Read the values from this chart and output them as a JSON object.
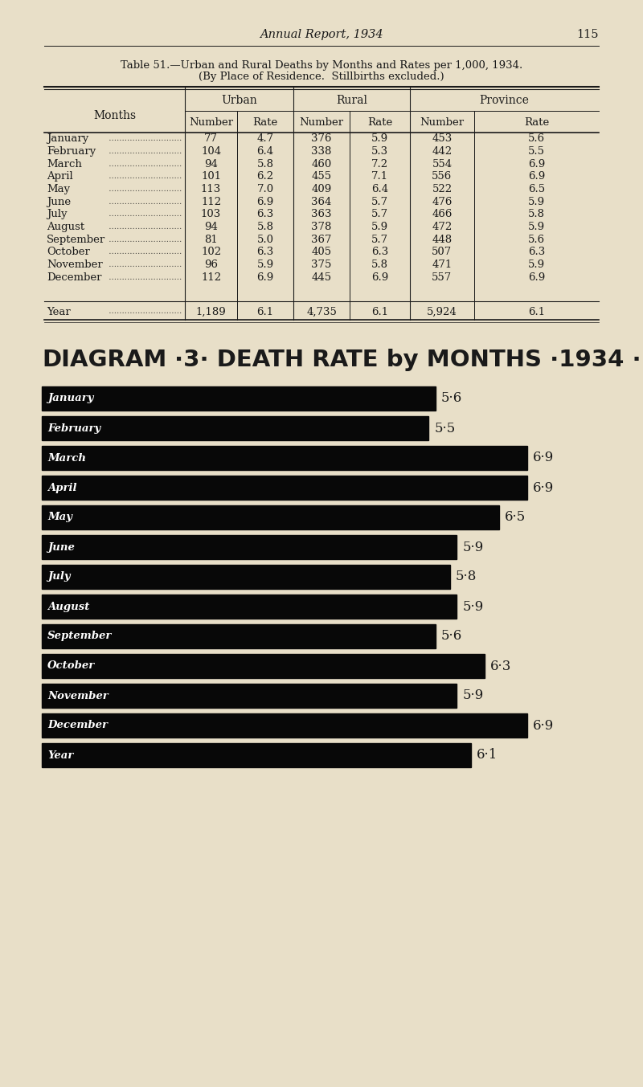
{
  "page_header": "Annual Report, 1934",
  "page_number": "115",
  "table_title_line1": "Table 51.—Urban and Rural Deaths by Months and Rates per 1,000, 1934.",
  "table_title_line2": "(By Place of Residence.  Stillbirths excluded.)",
  "col_headers": [
    "Urban",
    "Rural",
    "Province"
  ],
  "sub_headers": [
    "Number",
    "Rate",
    "Number",
    "Rate",
    "Number",
    "Rate"
  ],
  "months": [
    "January",
    "February",
    "March",
    "April",
    "May",
    "June",
    "July",
    "August",
    "September",
    "October",
    "November",
    "December"
  ],
  "year_label": "Year",
  "table_data": [
    [
      77,
      4.7,
      376,
      5.9,
      453,
      5.6
    ],
    [
      104,
      6.4,
      338,
      5.3,
      442,
      5.5
    ],
    [
      94,
      5.8,
      460,
      7.2,
      554,
      6.9
    ],
    [
      101,
      6.2,
      455,
      7.1,
      556,
      6.9
    ],
    [
      113,
      7.0,
      409,
      6.4,
      522,
      6.5
    ],
    [
      112,
      6.9,
      364,
      5.7,
      476,
      5.9
    ],
    [
      103,
      6.3,
      363,
      5.7,
      466,
      5.8
    ],
    [
      94,
      5.8,
      378,
      5.9,
      472,
      5.9
    ],
    [
      81,
      5.0,
      367,
      5.7,
      448,
      5.6
    ],
    [
      102,
      6.3,
      405,
      6.3,
      507,
      6.3
    ],
    [
      96,
      5.9,
      375,
      5.8,
      471,
      5.9
    ],
    [
      112,
      6.9,
      445,
      6.9,
      557,
      6.9
    ]
  ],
  "year_data": [
    "1,189",
    6.1,
    "4,735",
    6.1,
    "5,924",
    6.1
  ],
  "diagram_title": "DIAGRAM·3· DEATH RATE by MONTHS·1934·",
  "bar_months": [
    "January",
    "February",
    "March",
    "April",
    "May",
    "June",
    "July",
    "August",
    "September",
    "October",
    "November",
    "December",
    "Year"
  ],
  "bar_rates": [
    5.6,
    5.5,
    6.9,
    6.9,
    6.5,
    5.9,
    5.8,
    5.9,
    5.6,
    6.3,
    5.9,
    6.9,
    6.1
  ],
  "bar_color": "#080808",
  "bg_color": "#e8dfc8",
  "text_color": "#1a1a1a",
  "bar_text_color": "#ffffff",
  "max_bar_rate": 7.2
}
